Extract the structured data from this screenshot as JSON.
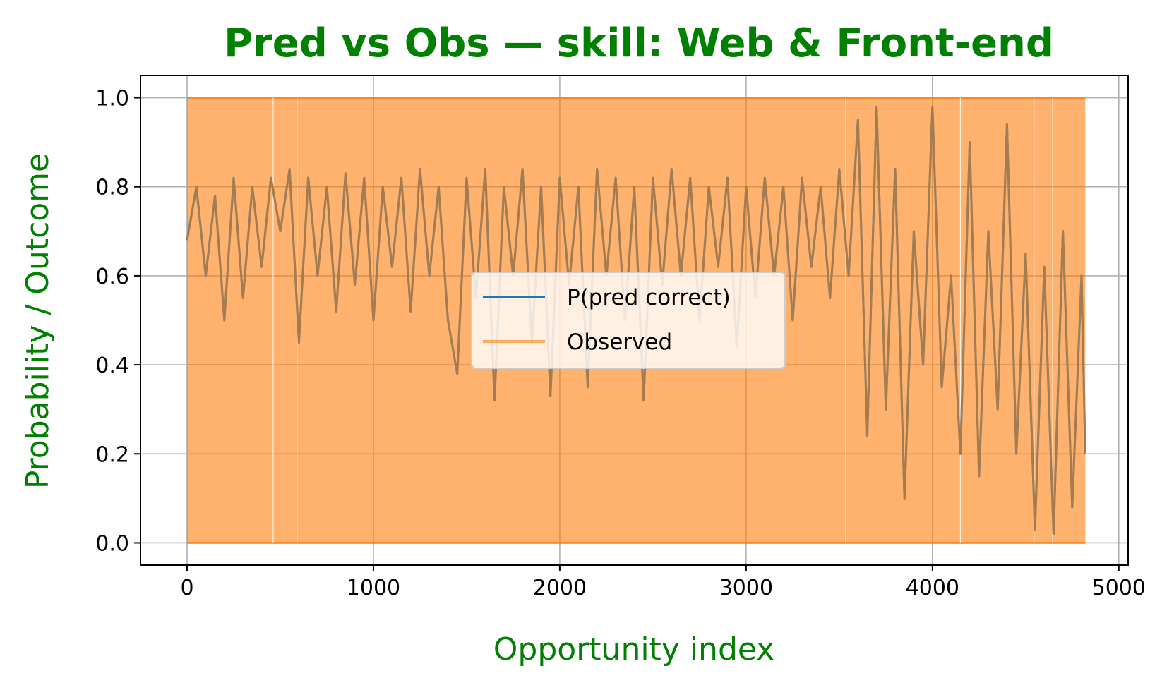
{
  "chart_data": {
    "type": "line",
    "title": "Pred vs Obs — skill: Web & Front-end",
    "xlabel": "Opportunity index",
    "ylabel": "Probability / Outcome",
    "xlim": [
      -250,
      5050
    ],
    "ylim": [
      -0.05,
      1.05
    ],
    "x_ticks": [
      0,
      1000,
      2000,
      3000,
      4000,
      5000
    ],
    "y_ticks": [
      0.0,
      0.2,
      0.4,
      0.6,
      0.8,
      1.0
    ],
    "x_tick_labels": [
      "0",
      "1000",
      "2000",
      "3000",
      "4000",
      "5000"
    ],
    "y_tick_labels": [
      "0.0",
      "0.2",
      "0.4",
      "0.6",
      "0.8",
      "1.0"
    ],
    "grid": true,
    "legend_position": "center",
    "series": [
      {
        "name": "P(pred correct)",
        "color": "#1f77b4",
        "x": [
          0,
          50,
          100,
          150,
          200,
          250,
          300,
          350,
          400,
          450,
          500,
          550,
          600,
          650,
          700,
          750,
          800,
          850,
          900,
          950,
          1000,
          1050,
          1100,
          1150,
          1200,
          1250,
          1300,
          1350,
          1400,
          1450,
          1500,
          1550,
          1600,
          1650,
          1700,
          1750,
          1800,
          1850,
          1900,
          1950,
          2000,
          2050,
          2100,
          2150,
          2200,
          2250,
          2300,
          2350,
          2400,
          2450,
          2500,
          2550,
          2600,
          2650,
          2700,
          2750,
          2800,
          2850,
          2900,
          2950,
          3000,
          3050,
          3100,
          3150,
          3200,
          3250,
          3300,
          3350,
          3400,
          3450,
          3500,
          3550,
          3600,
          3650,
          3700,
          3750,
          3800,
          3850,
          3900,
          3950,
          4000,
          4050,
          4100,
          4150,
          4200,
          4250,
          4300,
          4350,
          4400,
          4450,
          4500,
          4550,
          4600,
          4650,
          4700,
          4750,
          4800,
          4820
        ],
        "values": [
          0.68,
          0.8,
          0.6,
          0.78,
          0.5,
          0.82,
          0.55,
          0.8,
          0.62,
          0.82,
          0.7,
          0.84,
          0.45,
          0.82,
          0.6,
          0.8,
          0.52,
          0.83,
          0.58,
          0.82,
          0.5,
          0.8,
          0.62,
          0.82,
          0.52,
          0.84,
          0.6,
          0.8,
          0.5,
          0.38,
          0.82,
          0.55,
          0.84,
          0.32,
          0.8,
          0.6,
          0.84,
          0.45,
          0.8,
          0.33,
          0.82,
          0.58,
          0.8,
          0.35,
          0.84,
          0.6,
          0.82,
          0.5,
          0.8,
          0.32,
          0.82,
          0.58,
          0.84,
          0.6,
          0.82,
          0.5,
          0.8,
          0.62,
          0.82,
          0.44,
          0.8,
          0.55,
          0.82,
          0.6,
          0.8,
          0.5,
          0.82,
          0.62,
          0.8,
          0.55,
          0.84,
          0.6,
          0.95,
          0.24,
          0.98,
          0.3,
          0.84,
          0.1,
          0.7,
          0.4,
          0.98,
          0.35,
          0.6,
          0.2,
          0.9,
          0.15,
          0.7,
          0.3,
          0.94,
          0.2,
          0.65,
          0.03,
          0.62,
          0.02,
          0.7,
          0.08,
          0.6,
          0.2
        ]
      },
      {
        "name": "Observed",
        "color": "#ff7f0e",
        "x": [
          0,
          4820
        ],
        "values": [
          0,
          1
        ],
        "note_render": "dense 0/1 outcomes"
      }
    ]
  }
}
